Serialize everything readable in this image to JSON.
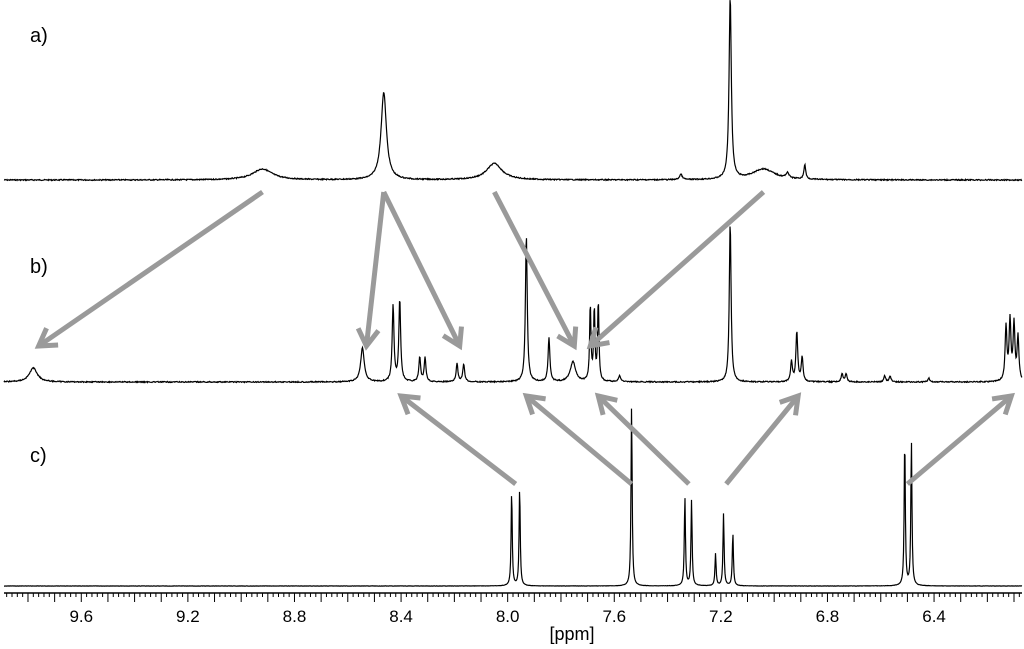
{
  "chart_data": {
    "type": "line",
    "xlabel": "[ppm]",
    "xlim": [
      9.89,
      6.07
    ],
    "x_reversed": true,
    "xticks": [
      9.6,
      9.2,
      8.8,
      8.4,
      8.0,
      7.6,
      7.2,
      6.8,
      6.4
    ],
    "xtick_labels": [
      "9.6",
      "9.2",
      "8.8",
      "8.4",
      "8.0",
      "7.6",
      "7.2",
      "6.8",
      "6.4"
    ],
    "series": [
      {
        "label": "a)",
        "peaks": [
          {
            "ppm": 8.92,
            "height": 0.06,
            "width": 0.045
          },
          {
            "ppm": 8.465,
            "height": 0.48,
            "width": 0.012
          },
          {
            "ppm": 8.05,
            "height": 0.09,
            "width": 0.035
          },
          {
            "ppm": 7.35,
            "height": 0.03,
            "width": 0.006
          },
          {
            "ppm": 7.165,
            "height": 1.0,
            "width": 0.005
          },
          {
            "ppm": 7.04,
            "height": 0.06,
            "width": 0.05
          },
          {
            "ppm": 6.95,
            "height": 0.03,
            "width": 0.006
          },
          {
            "ppm": 6.885,
            "height": 0.08,
            "width": 0.004
          }
        ]
      },
      {
        "label": "b)",
        "peaks": [
          {
            "ppm": 9.78,
            "height": 0.07,
            "width": 0.018
          },
          {
            "ppm": 8.545,
            "height": 0.17,
            "width": 0.008
          },
          {
            "ppm": 8.43,
            "height": 0.38,
            "width": 0.004
          },
          {
            "ppm": 8.405,
            "height": 0.41,
            "width": 0.004
          },
          {
            "ppm": 8.33,
            "height": 0.12,
            "width": 0.004
          },
          {
            "ppm": 8.31,
            "height": 0.12,
            "width": 0.004
          },
          {
            "ppm": 8.19,
            "height": 0.09,
            "width": 0.004
          },
          {
            "ppm": 8.165,
            "height": 0.09,
            "width": 0.004
          },
          {
            "ppm": 7.93,
            "height": 0.74,
            "width": 0.004
          },
          {
            "ppm": 7.845,
            "height": 0.22,
            "width": 0.004
          },
          {
            "ppm": 7.755,
            "height": 0.1,
            "width": 0.012
          },
          {
            "ppm": 7.69,
            "height": 0.38,
            "width": 0.003
          },
          {
            "ppm": 7.675,
            "height": 0.36,
            "width": 0.003
          },
          {
            "ppm": 7.66,
            "height": 0.4,
            "width": 0.003
          },
          {
            "ppm": 7.58,
            "height": 0.03,
            "width": 0.005
          },
          {
            "ppm": 7.165,
            "height": 0.8,
            "width": 0.004
          },
          {
            "ppm": 6.935,
            "height": 0.1,
            "width": 0.004
          },
          {
            "ppm": 6.915,
            "height": 0.25,
            "width": 0.004
          },
          {
            "ppm": 6.895,
            "height": 0.12,
            "width": 0.004
          },
          {
            "ppm": 6.745,
            "height": 0.04,
            "width": 0.004
          },
          {
            "ppm": 6.73,
            "height": 0.04,
            "width": 0.004
          },
          {
            "ppm": 6.585,
            "height": 0.03,
            "width": 0.004
          },
          {
            "ppm": 6.565,
            "height": 0.03,
            "width": 0.004
          },
          {
            "ppm": 6.42,
            "height": 0.02,
            "width": 0.004
          },
          {
            "ppm": 6.13,
            "height": 0.27,
            "width": 0.004
          },
          {
            "ppm": 6.115,
            "height": 0.3,
            "width": 0.004
          },
          {
            "ppm": 6.1,
            "height": 0.28,
            "width": 0.004
          },
          {
            "ppm": 6.085,
            "height": 0.22,
            "width": 0.004
          }
        ]
      },
      {
        "label": "c)",
        "peaks": [
          {
            "ppm": 7.985,
            "height": 0.5,
            "width": 0.0025
          },
          {
            "ppm": 7.955,
            "height": 0.52,
            "width": 0.0025
          },
          {
            "ppm": 7.535,
            "height": 0.95,
            "width": 0.0025
          },
          {
            "ppm": 7.335,
            "height": 0.47,
            "width": 0.0025
          },
          {
            "ppm": 7.31,
            "height": 0.45,
            "width": 0.0025
          },
          {
            "ppm": 7.22,
            "height": 0.17,
            "width": 0.0025
          },
          {
            "ppm": 7.19,
            "height": 0.38,
            "width": 0.0025
          },
          {
            "ppm": 7.155,
            "height": 0.28,
            "width": 0.0025
          },
          {
            "ppm": 6.51,
            "height": 0.78,
            "width": 0.0025
          },
          {
            "ppm": 6.485,
            "height": 0.76,
            "width": 0.0025
          }
        ]
      }
    ],
    "arrows": [
      {
        "from": "a",
        "from_ppm": 8.92,
        "to": "b",
        "to_ppm": 9.76
      },
      {
        "from": "a",
        "from_ppm": 8.465,
        "to": "b",
        "to_ppm": 8.53
      },
      {
        "from": "a",
        "from_ppm": 8.465,
        "to": "b",
        "to_ppm": 8.18
      },
      {
        "from": "a",
        "from_ppm": 8.05,
        "to": "b",
        "to_ppm": 7.75
      },
      {
        "from": "a",
        "from_ppm": 7.04,
        "to": "b",
        "to_ppm": 7.69
      },
      {
        "from": "c",
        "from_ppm": 7.97,
        "to": "b",
        "to_ppm": 8.4
      },
      {
        "from": "c",
        "from_ppm": 7.535,
        "to": "b",
        "to_ppm": 7.93
      },
      {
        "from": "c",
        "from_ppm": 7.32,
        "to": "b",
        "to_ppm": 7.66
      },
      {
        "from": "c",
        "from_ppm": 7.18,
        "to": "b",
        "to_ppm": 6.91
      },
      {
        "from": "c",
        "from_ppm": 6.5,
        "to": "b",
        "to_ppm": 6.11
      }
    ],
    "colors": {
      "spectrum": "#000000",
      "arrow": "#9a9a9a"
    },
    "grid": false
  }
}
